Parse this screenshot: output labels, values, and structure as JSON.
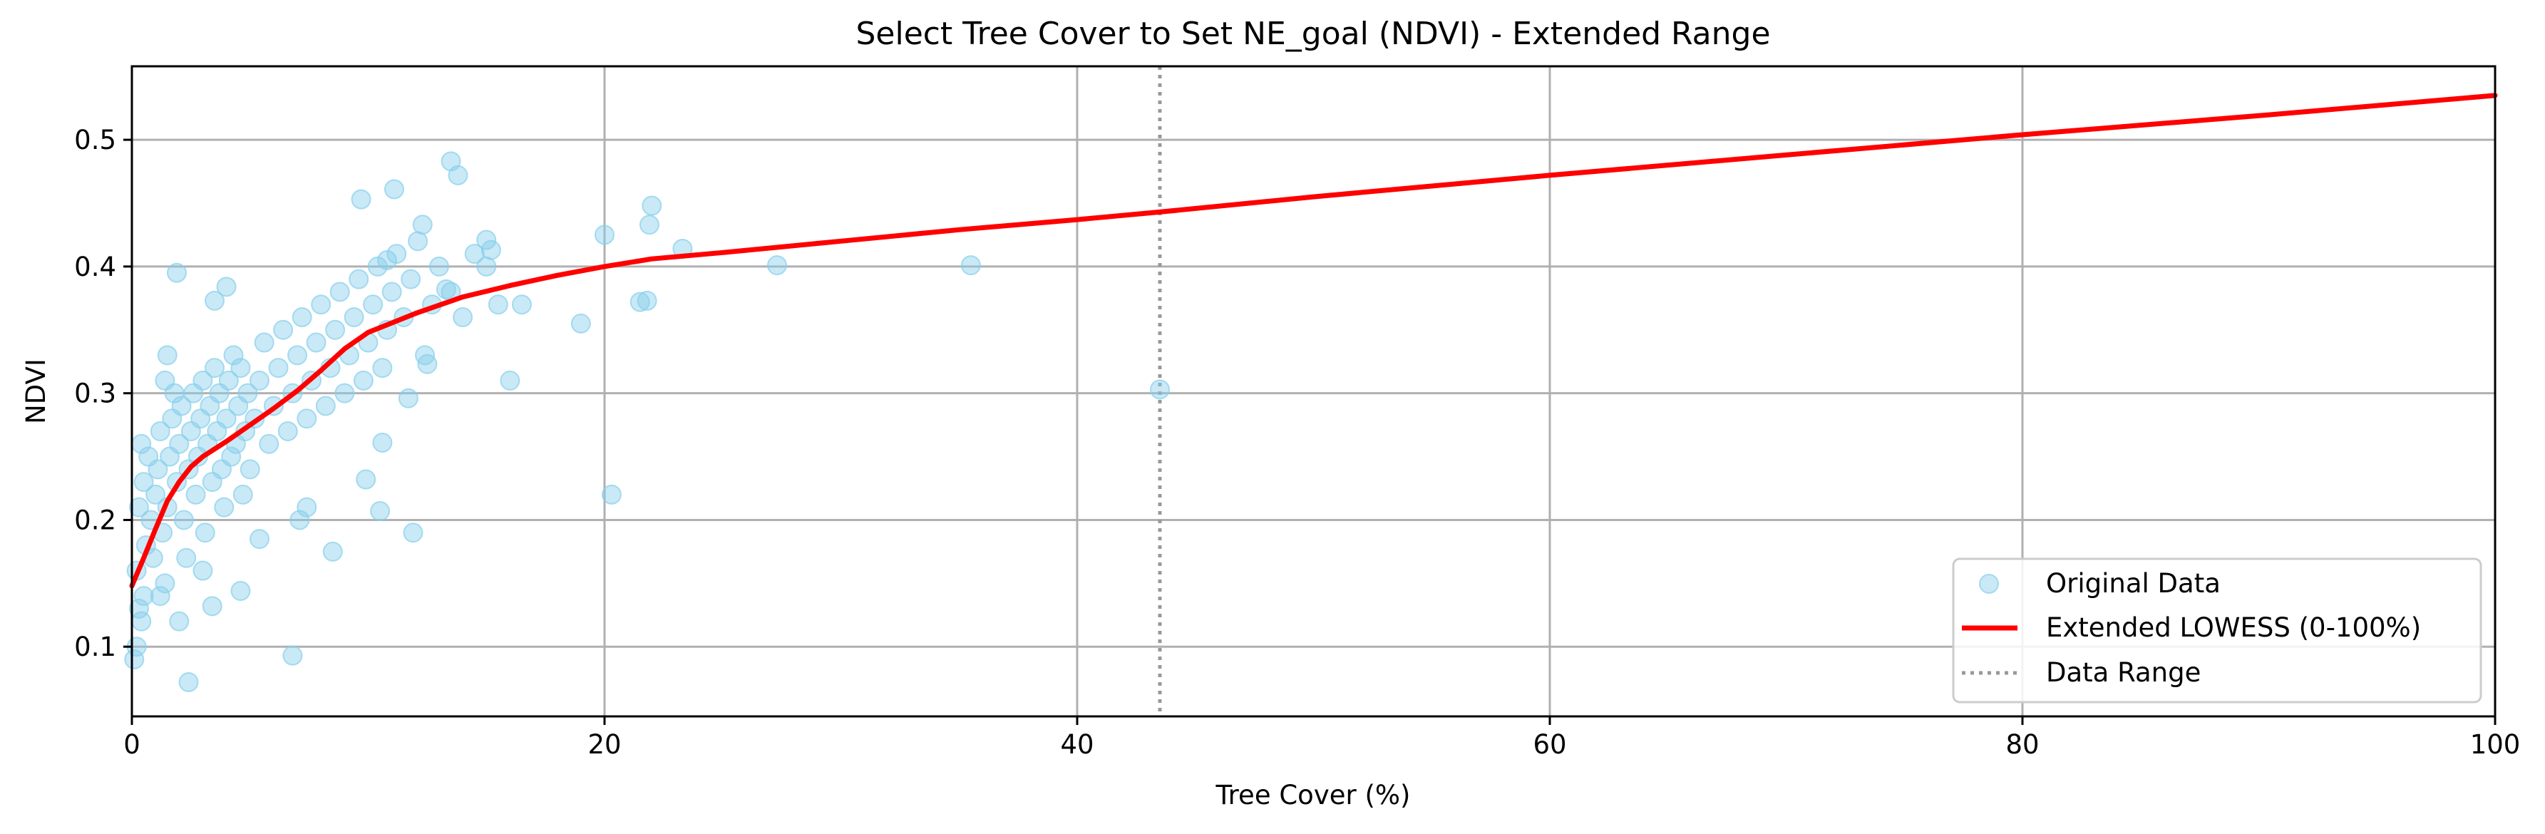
{
  "chart_data": {
    "type": "scatter",
    "title": "Select Tree Cover to Set NE_goal (NDVI) - Extended Range",
    "xlabel": "Tree Cover (%)",
    "ylabel": "NDVI",
    "xlim": [
      0,
      100
    ],
    "ylim": [
      0.045,
      0.558
    ],
    "x_ticks": [
      0,
      20,
      40,
      60,
      80,
      100
    ],
    "y_ticks": [
      0.1,
      0.2,
      0.3,
      0.4,
      0.5
    ],
    "x_tick_labels": [
      "0",
      "20",
      "40",
      "60",
      "80",
      "100"
    ],
    "y_tick_labels": [
      "0.1",
      "0.2",
      "0.3",
      "0.4",
      "0.5"
    ],
    "grid": true,
    "legend_position": "lower-right",
    "colors": {
      "original": "#87ceeb",
      "lowess": "#ff0000",
      "range": "#999999"
    },
    "series": [
      {
        "name": "Original Data",
        "kind": "scatter",
        "points": [
          [
            0.1,
            0.09
          ],
          [
            0.2,
            0.1
          ],
          [
            0.3,
            0.13
          ],
          [
            0.2,
            0.16
          ],
          [
            0.4,
            0.12
          ],
          [
            0.5,
            0.14
          ],
          [
            0.6,
            0.18
          ],
          [
            0.3,
            0.21
          ],
          [
            0.5,
            0.23
          ],
          [
            0.7,
            0.25
          ],
          [
            0.4,
            0.26
          ],
          [
            0.8,
            0.2
          ],
          [
            0.9,
            0.17
          ],
          [
            1.0,
            0.22
          ],
          [
            1.1,
            0.24
          ],
          [
            1.2,
            0.27
          ],
          [
            1.3,
            0.19
          ],
          [
            1.4,
            0.15
          ],
          [
            1.5,
            0.21
          ],
          [
            1.6,
            0.25
          ],
          [
            1.7,
            0.28
          ],
          [
            1.4,
            0.31
          ],
          [
            1.8,
            0.3
          ],
          [
            1.9,
            0.23
          ],
          [
            2.0,
            0.26
          ],
          [
            2.1,
            0.29
          ],
          [
            2.2,
            0.2
          ],
          [
            2.3,
            0.17
          ],
          [
            2.4,
            0.24
          ],
          [
            2.5,
            0.27
          ],
          [
            2.6,
            0.3
          ],
          [
            2.7,
            0.22
          ],
          [
            2.8,
            0.25
          ],
          [
            2.9,
            0.28
          ],
          [
            3.0,
            0.31
          ],
          [
            3.1,
            0.19
          ],
          [
            3.2,
            0.26
          ],
          [
            3.3,
            0.29
          ],
          [
            3.4,
            0.23
          ],
          [
            3.5,
            0.32
          ],
          [
            3.6,
            0.27
          ],
          [
            3.7,
            0.3
          ],
          [
            3.8,
            0.24
          ],
          [
            3.9,
            0.21
          ],
          [
            4.0,
            0.28
          ],
          [
            4.1,
            0.31
          ],
          [
            4.2,
            0.25
          ],
          [
            4.3,
            0.33
          ],
          [
            4.4,
            0.26
          ],
          [
            4.5,
            0.29
          ],
          [
            4.6,
            0.32
          ],
          [
            4.7,
            0.22
          ],
          [
            4.8,
            0.27
          ],
          [
            4.9,
            0.3
          ],
          [
            5.0,
            0.24
          ],
          [
            5.2,
            0.28
          ],
          [
            5.4,
            0.31
          ],
          [
            5.6,
            0.34
          ],
          [
            5.8,
            0.26
          ],
          [
            6.0,
            0.29
          ],
          [
            6.2,
            0.32
          ],
          [
            6.4,
            0.35
          ],
          [
            6.6,
            0.27
          ],
          [
            6.8,
            0.3
          ],
          [
            7.0,
            0.33
          ],
          [
            7.2,
            0.36
          ],
          [
            7.4,
            0.28
          ],
          [
            7.6,
            0.31
          ],
          [
            7.8,
            0.34
          ],
          [
            8.0,
            0.37
          ],
          [
            8.2,
            0.29
          ],
          [
            8.4,
            0.32
          ],
          [
            8.6,
            0.35
          ],
          [
            8.8,
            0.38
          ],
          [
            9.0,
            0.3
          ],
          [
            9.2,
            0.33
          ],
          [
            9.4,
            0.36
          ],
          [
            9.6,
            0.39
          ],
          [
            9.8,
            0.31
          ],
          [
            10.0,
            0.34
          ],
          [
            10.2,
            0.37
          ],
          [
            10.4,
            0.4
          ],
          [
            10.6,
            0.32
          ],
          [
            10.8,
            0.35
          ],
          [
            11.0,
            0.38
          ],
          [
            11.2,
            0.41
          ],
          [
            11.5,
            0.36
          ],
          [
            11.8,
            0.39
          ],
          [
            12.1,
            0.42
          ],
          [
            12.4,
            0.33
          ],
          [
            12.7,
            0.37
          ],
          [
            13.0,
            0.4
          ],
          [
            13.5,
            0.38
          ],
          [
            14.0,
            0.36
          ],
          [
            14.5,
            0.41
          ],
          [
            15.0,
            0.4
          ],
          [
            15.5,
            0.37
          ],
          [
            16.0,
            0.31
          ],
          [
            16.5,
            0.37
          ],
          [
            19.0,
            0.355
          ],
          [
            1.9,
            0.395
          ],
          [
            3.5,
            0.373
          ],
          [
            4.0,
            0.384
          ],
          [
            2.4,
            0.072
          ],
          [
            6.8,
            0.093
          ],
          [
            8.5,
            0.175
          ],
          [
            11.9,
            0.19
          ],
          [
            20.3,
            0.22
          ],
          [
            13.5,
            0.483
          ],
          [
            13.8,
            0.472
          ],
          [
            11.1,
            0.461
          ],
          [
            9.7,
            0.453
          ],
          [
            12.3,
            0.433
          ],
          [
            10.8,
            0.405
          ],
          [
            15.0,
            0.421
          ],
          [
            15.2,
            0.413
          ],
          [
            20.0,
            0.425
          ],
          [
            21.5,
            0.372
          ],
          [
            21.8,
            0.373
          ],
          [
            22.0,
            0.448
          ],
          [
            21.9,
            0.433
          ],
          [
            23.3,
            0.414
          ],
          [
            27.3,
            0.401
          ],
          [
            35.5,
            0.401
          ],
          [
            43.5,
            0.303
          ],
          [
            1.2,
            0.14
          ],
          [
            1.5,
            0.33
          ],
          [
            2.0,
            0.12
          ],
          [
            3.0,
            0.16
          ],
          [
            3.4,
            0.132
          ],
          [
            4.6,
            0.144
          ],
          [
            5.4,
            0.185
          ],
          [
            7.4,
            0.21
          ],
          [
            7.1,
            0.2
          ],
          [
            9.9,
            0.232
          ],
          [
            10.5,
            0.207
          ],
          [
            10.6,
            0.261
          ],
          [
            11.7,
            0.296
          ],
          [
            12.5,
            0.323
          ],
          [
            13.3,
            0.382
          ]
        ]
      },
      {
        "name": "Extended LOWESS (0-100%)",
        "kind": "line",
        "points": [
          [
            0,
            0.148
          ],
          [
            0.5,
            0.17
          ],
          [
            1,
            0.193
          ],
          [
            1.5,
            0.215
          ],
          [
            2,
            0.23
          ],
          [
            2.5,
            0.242
          ],
          [
            3,
            0.25
          ],
          [
            4,
            0.262
          ],
          [
            5,
            0.275
          ],
          [
            6,
            0.288
          ],
          [
            7,
            0.302
          ],
          [
            8,
            0.318
          ],
          [
            9,
            0.335
          ],
          [
            10,
            0.348
          ],
          [
            12,
            0.363
          ],
          [
            14,
            0.376
          ],
          [
            16,
            0.385
          ],
          [
            18,
            0.393
          ],
          [
            20,
            0.4
          ],
          [
            22,
            0.406
          ],
          [
            25,
            0.411
          ],
          [
            30,
            0.42
          ],
          [
            35,
            0.429
          ],
          [
            40,
            0.437
          ],
          [
            43.5,
            0.443
          ],
          [
            50,
            0.455
          ],
          [
            60,
            0.472
          ],
          [
            70,
            0.488
          ],
          [
            80,
            0.504
          ],
          [
            90,
            0.519
          ],
          [
            100,
            0.535
          ]
        ]
      },
      {
        "name": "Data Range",
        "kind": "vline",
        "x": 43.5
      }
    ]
  }
}
